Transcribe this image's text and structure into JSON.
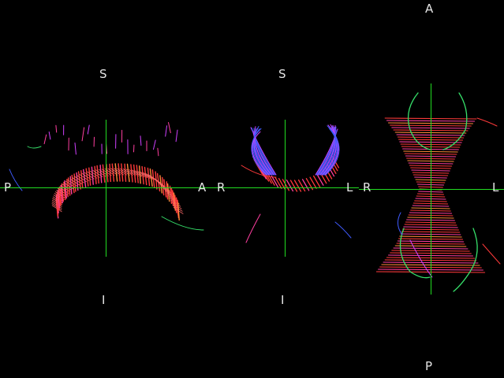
{
  "colors": {
    "background": "#000000",
    "crosshair": "#22dd22",
    "label": "#e6e6e6",
    "fiber_palette": [
      "#ff3a3a",
      "#ff6a6a",
      "#ff3fa0",
      "#d040ff",
      "#3f5bff",
      "#36e06a",
      "#ff8a3a"
    ]
  },
  "views": {
    "sagittal": {
      "top": "S",
      "bottom": "I",
      "left": "P",
      "right": "A",
      "structure": "corpus-callosum-sagittal"
    },
    "coronal": {
      "top": "S",
      "bottom": "I",
      "left": "R",
      "right": "L",
      "structure": "corpus-callosum-coronal"
    },
    "axial": {
      "top": "A",
      "bottom": "P",
      "left": "R",
      "right": "L",
      "structure": "corpus-callosum-axial"
    }
  }
}
